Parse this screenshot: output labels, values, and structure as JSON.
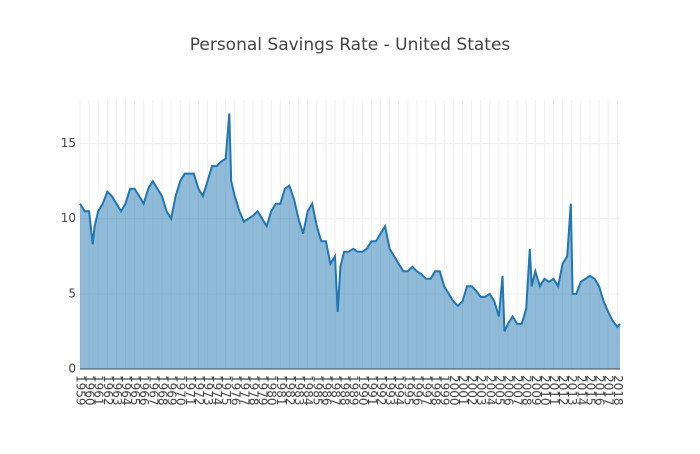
{
  "chart_data": {
    "type": "area",
    "title": "Personal Savings Rate - United States",
    "x": [
      1959,
      1959.5,
      1960,
      1960.4,
      1960.6,
      1961,
      1961.5,
      1962,
      1962.5,
      1963,
      1963.5,
      1964,
      1964.5,
      1965,
      1965.5,
      1966,
      1966.5,
      1967,
      1967.5,
      1968,
      1968.5,
      1969,
      1969.5,
      1970,
      1970.5,
      1971,
      1971.5,
      1972,
      1972.5,
      1973,
      1973.5,
      1974,
      1974.5,
      1975,
      1975.4,
      1975.6,
      1976,
      1976.5,
      1977,
      1977.5,
      1978,
      1978.5,
      1979,
      1979.5,
      1980,
      1980.5,
      1981,
      1981.5,
      1982,
      1982.5,
      1983,
      1983.5,
      1984,
      1984.5,
      1985,
      1985.5,
      1986,
      1986.5,
      1987,
      1987.3,
      1987.6,
      1988,
      1988.5,
      1989,
      1989.5,
      1990,
      1990.5,
      1991,
      1991.5,
      1992,
      1992.5,
      1993,
      1993.5,
      1994,
      1994.5,
      1995,
      1995.5,
      1996,
      1996.5,
      1997,
      1997.5,
      1998,
      1998.5,
      1999,
      1999.5,
      2000,
      2000.5,
      2001,
      2001.5,
      2002,
      2002.5,
      2003,
      2003.5,
      2004,
      2004.5,
      2005,
      2005.4,
      2005.6,
      2006,
      2006.5,
      2007,
      2007.5,
      2008,
      2008.4,
      2008.6,
      2009,
      2009.5,
      2010,
      2010.5,
      2011,
      2011.5,
      2012,
      2012.5,
      2012.9,
      2013.1,
      2013.5,
      2014,
      2014.5,
      2015,
      2015.5,
      2016,
      2016.5,
      2017,
      2017.5,
      2018,
      2018.3
    ],
    "values": [
      11,
      10.5,
      10.5,
      8.3,
      9.5,
      10.5,
      11,
      11.8,
      11.5,
      11,
      10.5,
      11,
      12,
      12,
      11.5,
      11,
      12,
      12.5,
      12,
      11.5,
      10.5,
      10,
      11.5,
      12.5,
      13,
      13,
      13,
      12,
      11.5,
      12.5,
      13.5,
      13.5,
      13.8,
      14,
      17,
      12.5,
      11.5,
      10.5,
      9.8,
      10,
      10.2,
      10.5,
      10,
      9.5,
      10.5,
      11,
      11,
      12,
      12.2,
      11.3,
      10,
      9,
      10.5,
      11,
      9.5,
      8.5,
      8.5,
      7,
      7.5,
      3.8,
      6.8,
      7.8,
      7.8,
      8,
      7.8,
      7.8,
      8,
      8.5,
      8.5,
      9,
      9.5,
      8,
      7.5,
      7,
      6.5,
      6.5,
      6.8,
      6.5,
      6.3,
      6,
      6,
      6.5,
      6.5,
      5.5,
      5,
      4.5,
      4.2,
      4.5,
      5.5,
      5.5,
      5.2,
      4.8,
      4.8,
      5,
      4.5,
      3.5,
      6.2,
      2.5,
      3,
      3.5,
      3,
      3,
      4,
      8,
      5.5,
      6.5,
      5.5,
      6,
      5.8,
      6,
      5.5,
      7,
      7.5,
      11,
      5,
      5,
      5.8,
      6,
      6.2,
      6,
      5.5,
      4.5,
      3.8,
      3.2,
      2.8,
      3
    ],
    "color": "#1f77b4",
    "fill": "rgba(31,119,180,0.5)",
    "xlim": [
      1959,
      2018.3
    ],
    "xticks": [
      1959,
      1960,
      1961,
      1962,
      1963,
      1964,
      1965,
      1966,
      1967,
      1968,
      1969,
      1970,
      1971,
      1972,
      1973,
      1974,
      1975,
      1976,
      1977,
      1978,
      1979,
      1980,
      1981,
      1982,
      1983,
      1984,
      1985,
      1986,
      1987,
      1988,
      1989,
      1990,
      1991,
      1992,
      1993,
      1994,
      1995,
      1996,
      1997,
      1998,
      1999,
      2000,
      2001,
      2002,
      2003,
      2004,
      2005,
      2006,
      2007,
      2008,
      2009,
      2010,
      2011,
      2012,
      2013,
      2014,
      2015,
      2016,
      2017,
      2018
    ],
    "ylim": [
      0,
      17.9
    ],
    "yticks": [
      0,
      5,
      10,
      15
    ],
    "grid": true
  }
}
